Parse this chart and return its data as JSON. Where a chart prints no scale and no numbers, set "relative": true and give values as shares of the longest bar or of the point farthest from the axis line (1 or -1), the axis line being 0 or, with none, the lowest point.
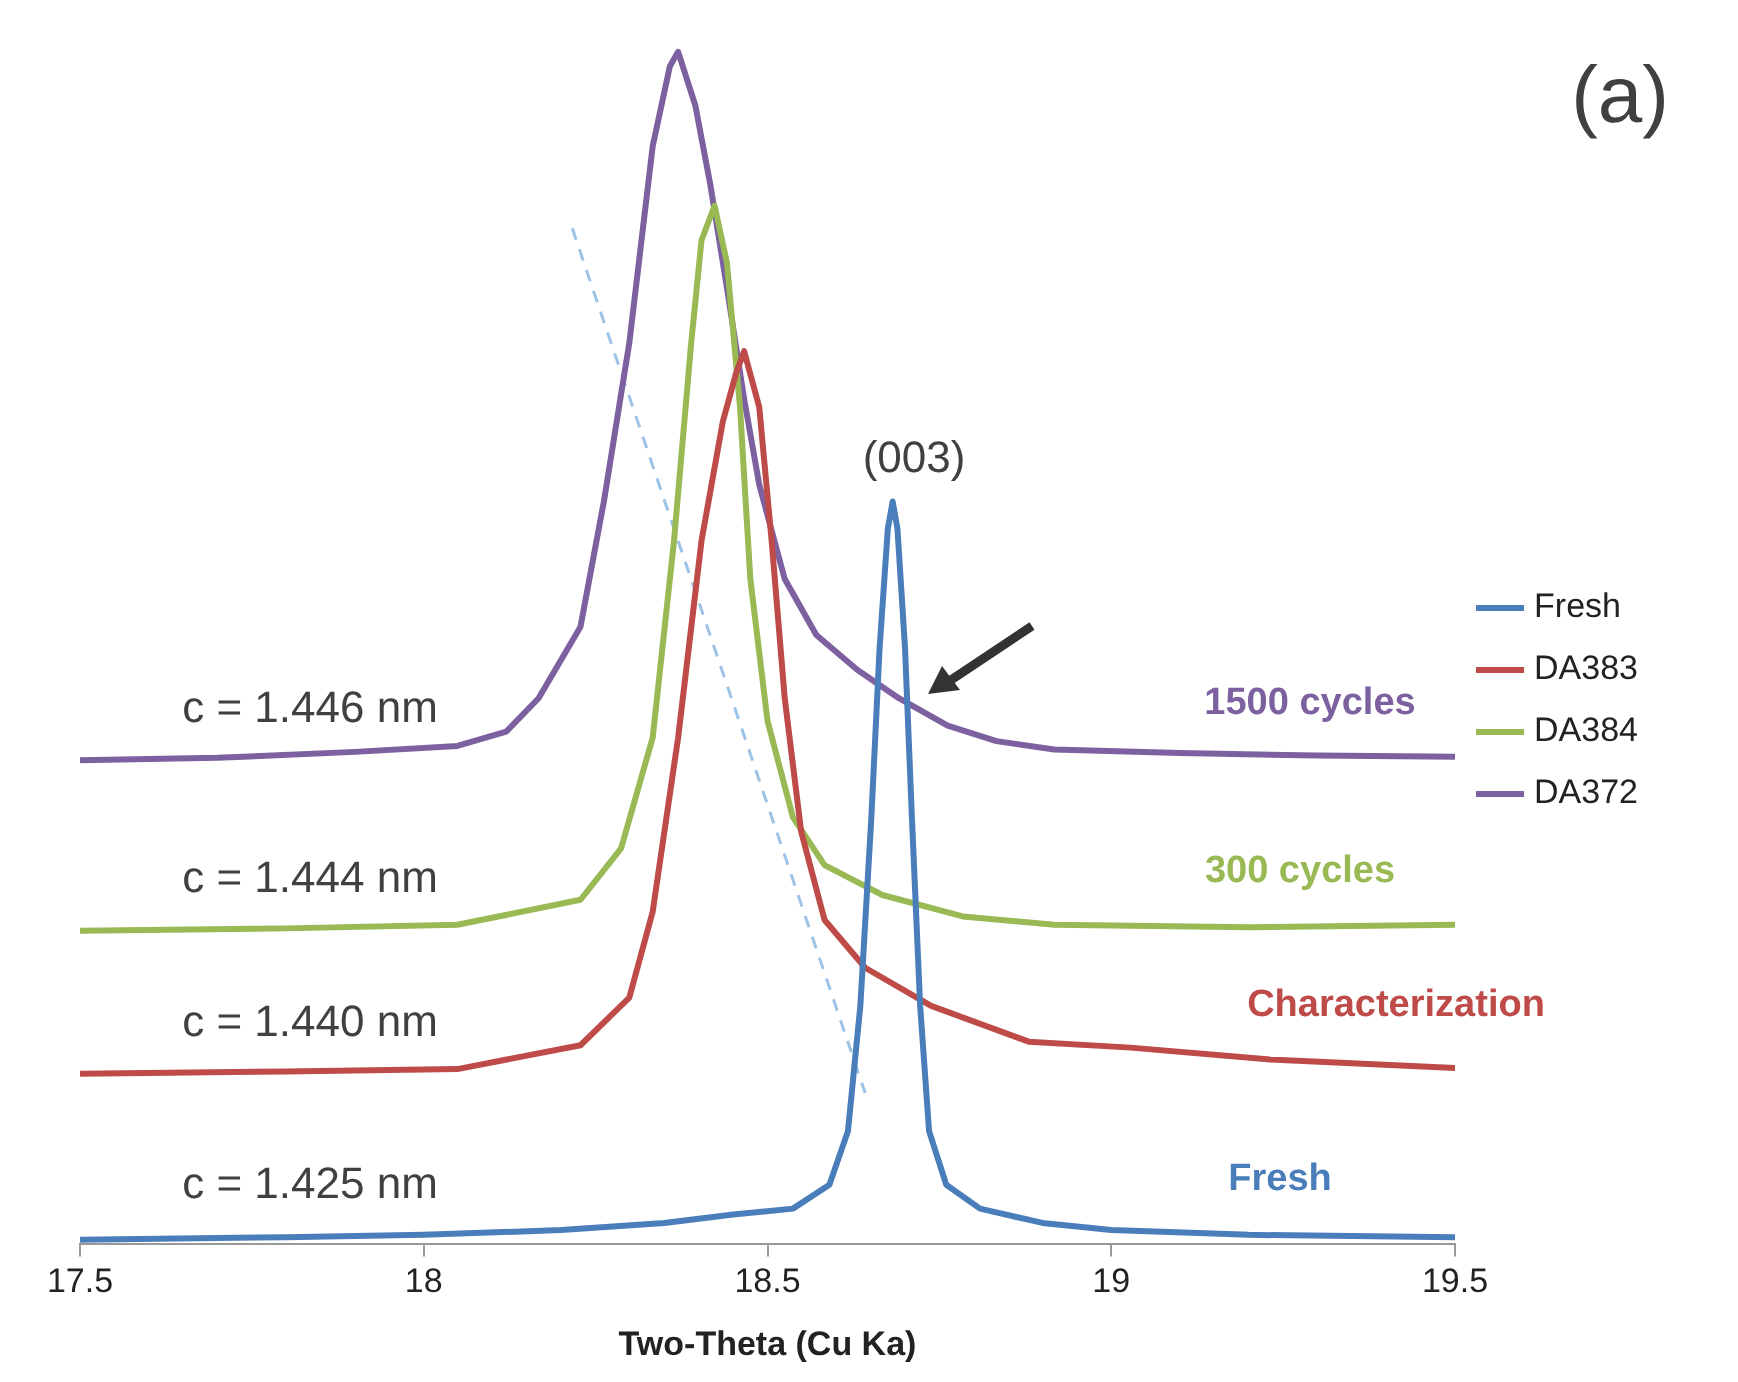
{
  "chart_data": {
    "type": "line",
    "xlabel": "Two-Theta (Cu Ka)",
    "relative": true,
    "xlim": [
      17.5,
      19.5
    ],
    "xticks": [
      17.5,
      18,
      18.5,
      19,
      19.5
    ],
    "grid": false,
    "legend": "right",
    "marker": "none",
    "tick_labels": "x",
    "line_style": "solid",
    "annotations": [
      "(a)",
      "(003)",
      "c = 1.446 nm",
      "c = 1.444 nm",
      "c = 1.440 nm",
      "c = 1.425 nm",
      "1500 cycles",
      "300 cycles",
      "Characterization",
      "Fresh"
    ],
    "series": [
      {
        "name": "Fresh",
        "color": "#4a7ebb",
        "x": [
          17.5,
          17.8,
          18.0,
          18.2,
          18.35,
          18.45,
          18.537,
          18.59,
          18.617,
          18.635,
          18.651,
          18.663,
          18.675,
          18.682,
          18.689,
          18.7,
          18.71,
          18.722,
          18.735,
          18.76,
          18.809,
          18.9,
          19.0,
          19.2,
          19.5
        ],
        "values": [
          0.004,
          0.006,
          0.008,
          0.012,
          0.018,
          0.025,
          0.03,
          0.05,
          0.095,
          0.2,
          0.358,
          0.5,
          0.6,
          0.623,
          0.6,
          0.5,
          0.358,
          0.2,
          0.095,
          0.05,
          0.03,
          0.018,
          0.012,
          0.008,
          0.006
        ]
      },
      {
        "name": "DA383",
        "color": "#be4b48",
        "x": [
          17.5,
          17.8,
          18.049,
          18.228,
          18.299,
          18.333,
          18.37,
          18.404,
          18.435,
          18.454,
          18.466,
          18.488,
          18.506,
          18.525,
          18.549,
          18.583,
          18.642,
          18.738,
          18.88,
          19.028,
          19.231,
          19.5
        ],
        "values": [
          0.143,
          0.145,
          0.147,
          0.167,
          0.207,
          0.279,
          0.425,
          0.59,
          0.69,
          0.73,
          0.749,
          0.702,
          0.59,
          0.458,
          0.346,
          0.272,
          0.232,
          0.2,
          0.17,
          0.165,
          0.155,
          0.148
        ]
      },
      {
        "name": "DA384",
        "color": "#98b954",
        "x": [
          17.5,
          17.8,
          18.049,
          18.228,
          18.287,
          18.333,
          18.364,
          18.389,
          18.404,
          18.423,
          18.441,
          18.46,
          18.475,
          18.5,
          18.537,
          18.583,
          18.667,
          18.784,
          18.917,
          19.2,
          19.5
        ],
        "values": [
          0.263,
          0.265,
          0.268,
          0.289,
          0.332,
          0.425,
          0.59,
          0.756,
          0.842,
          0.871,
          0.823,
          0.702,
          0.558,
          0.439,
          0.358,
          0.318,
          0.293,
          0.275,
          0.268,
          0.266,
          0.268
        ]
      },
      {
        "name": "DA372",
        "color": "#7d60a0",
        "x": [
          17.5,
          17.7,
          17.9,
          18.049,
          18.12,
          18.167,
          18.228,
          18.262,
          18.299,
          18.333,
          18.358,
          18.37,
          18.395,
          18.417,
          18.441,
          18.466,
          18.488,
          18.525,
          18.571,
          18.63,
          18.691,
          18.762,
          18.833,
          18.917,
          19.1,
          19.3,
          19.5
        ],
        "values": [
          0.406,
          0.408,
          0.413,
          0.418,
          0.43,
          0.458,
          0.518,
          0.623,
          0.756,
          0.921,
          0.988,
          1.0,
          0.955,
          0.888,
          0.802,
          0.709,
          0.637,
          0.558,
          0.511,
          0.482,
          0.458,
          0.435,
          0.422,
          0.415,
          0.412,
          0.41,
          0.409
        ]
      },
      {
        "type": "line",
        "color": "#9dc3e6",
        "line_style": "dashed",
        "x": [
          18.216,
          18.642
        ],
        "values": [
          0.852,
          0.127
        ]
      }
    ]
  }
}
